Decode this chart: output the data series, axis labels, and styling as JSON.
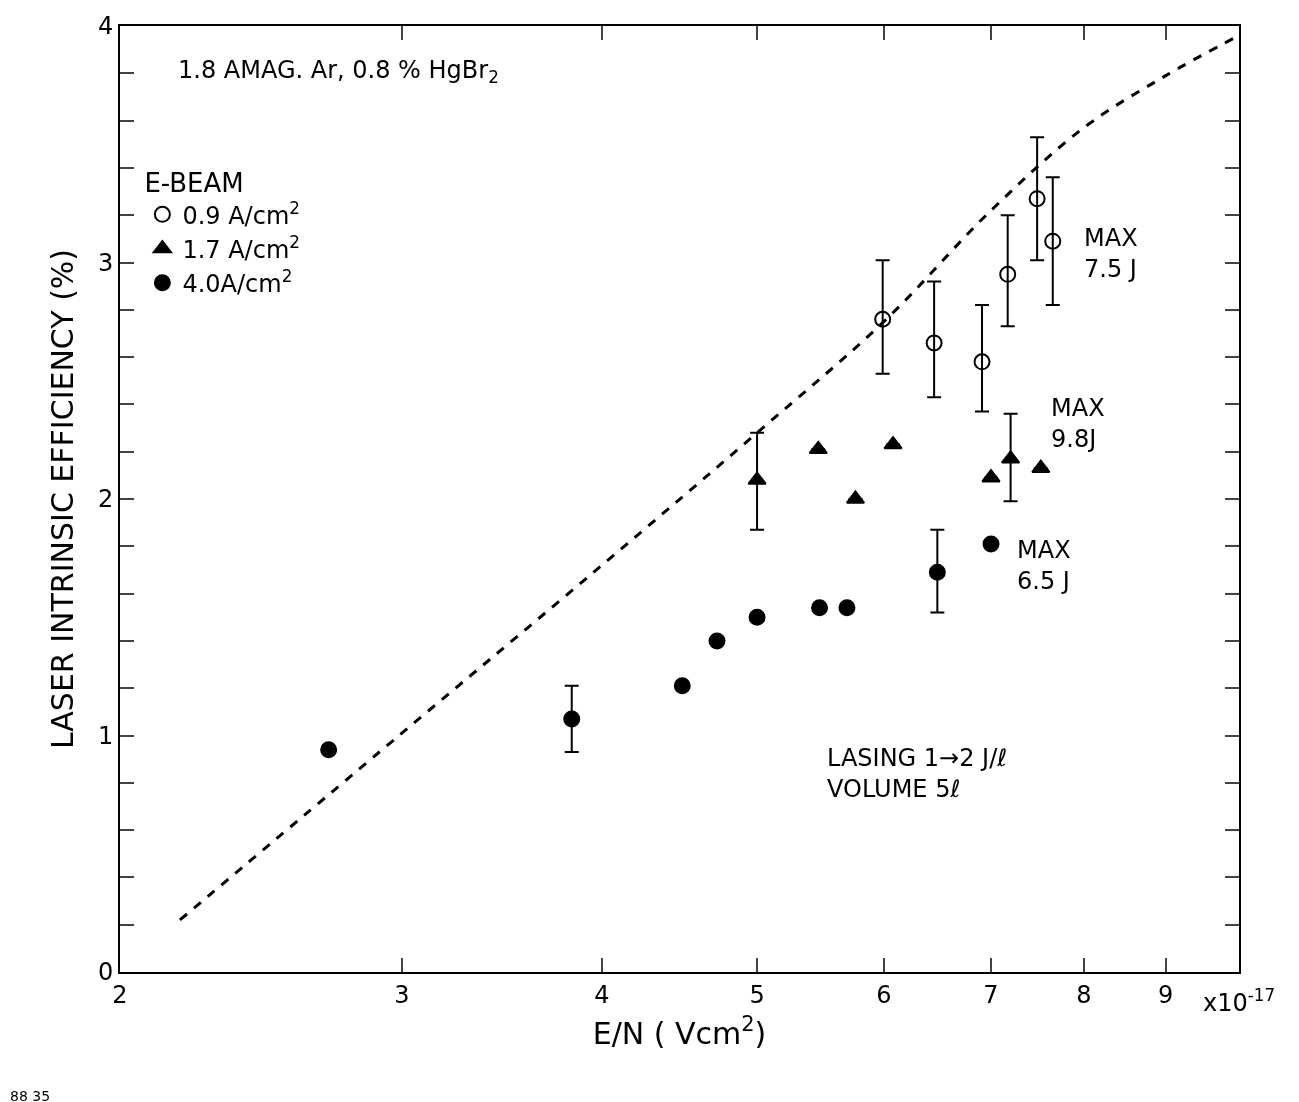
{
  "chart_data": {
    "type": "scatter",
    "xlabel": "E/N ( Vcm$^{2}$)",
    "ylabel": "LASER INTRINSIC EFFICIENCY (%)",
    "log": "x",
    "legend": "top left",
    "legend_title": "E-BEAM",
    "xlim": [
      2,
      10
    ],
    "xticks": [
      2,
      3,
      4,
      5,
      6,
      7,
      8,
      9
    ],
    "ylim": [
      0,
      4
    ],
    "yticks": [
      0,
      {
        "value": 0.2,
        "label": null
      },
      {
        "value": 0.4,
        "label": null
      },
      {
        "value": 0.6,
        "label": null
      },
      {
        "value": 0.8,
        "label": null
      },
      1,
      {
        "value": 1.2,
        "label": null
      },
      {
        "value": 1.4,
        "label": null
      },
      {
        "value": 1.6,
        "label": null
      },
      {
        "value": 1.8,
        "label": null
      },
      2,
      {
        "value": 2.2,
        "label": null
      },
      {
        "value": 2.4,
        "label": null
      },
      {
        "value": 2.6,
        "label": null
      },
      {
        "value": 2.8,
        "label": null
      },
      3,
      {
        "value": 3.2,
        "label": null
      },
      {
        "value": 3.4,
        "label": null
      },
      {
        "value": 3.6,
        "label": null
      },
      {
        "value": 3.8,
        "label": null
      },
      4
    ],
    "series": [
      {
        "type": "line",
        "line_style": "dashed",
        "marker": "none",
        "color": "#000000",
        "x": [
          2.18,
          3,
          4,
          5,
          6,
          7,
          8,
          9,
          10
        ],
        "values": [
          0.22,
          1.01,
          1.72,
          2.28,
          2.75,
          3.22,
          3.57,
          3.79,
          3.96
        ]
      },
      {
        "name": "0.9 A/cm$^{2}$",
        "marker": "circle-open",
        "color": "#000000",
        "x": [
          5.99,
          6.45,
          6.91,
          7.17,
          7.48,
          7.65
        ],
        "values": [
          2.76,
          2.66,
          2.58,
          2.95,
          3.27,
          3.09
        ],
        "errors": [
          [
            2.53,
            3.01
          ],
          [
            2.43,
            2.92
          ],
          [
            2.37,
            2.82
          ],
          [
            2.73,
            3.2
          ],
          [
            3.01,
            3.53
          ],
          [
            2.82,
            3.36
          ]
        ]
      },
      {
        "name": "1.7 A/cm$^{2}$",
        "marker": "triangle",
        "color": "#000000",
        "x": [
          5.0,
          5.46,
          5.76,
          6.08,
          7.0,
          7.2,
          7.52
        ],
        "values": [
          2.08,
          2.21,
          2.0,
          2.23,
          2.09,
          2.17,
          2.13
        ],
        "errors": [
          [
            1.87,
            2.28
          ],
          null,
          null,
          null,
          null,
          [
            1.99,
            2.36
          ],
          null
        ]
      },
      {
        "name": "4.0A/cm$^{2}$",
        "marker": "circle",
        "color": "#000000",
        "x": [
          2.7,
          3.83,
          4.49,
          4.72,
          5.0,
          5.47,
          5.69,
          6.48,
          7.0
        ],
        "values": [
          0.94,
          1.07,
          1.21,
          1.4,
          1.5,
          1.54,
          1.54,
          1.69,
          1.81
        ],
        "errors": [
          null,
          [
            0.93,
            1.21
          ],
          null,
          null,
          null,
          null,
          null,
          [
            1.52,
            1.87
          ],
          null
        ]
      }
    ],
    "annotations": [
      "1.8 AMAG. Ar, 0.8 % HgBr$_{2}$",
      "MAX\n7.5 J",
      "MAX\n9.8J",
      "MAX\n6.5 J",
      "LASING 1→2 J/ℓ\nVOLUME 5ℓ",
      "x10$^{-17}$",
      "88 35"
    ]
  }
}
